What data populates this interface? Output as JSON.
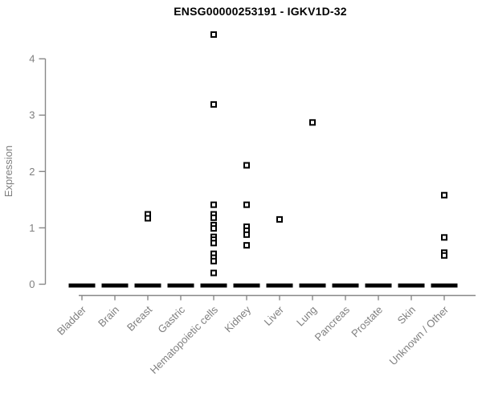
{
  "chart_data": {
    "type": "scatter",
    "title": "ENSG00000253191 - IGKV1D-32",
    "xlabel": "",
    "ylabel": "Expression",
    "ylim": [
      0,
      4.5
    ],
    "yticks": [
      0,
      1,
      2,
      3,
      4
    ],
    "grid": false,
    "legend": false,
    "marker": "open-square",
    "categories": [
      "Bladder",
      "Brain",
      "Breast",
      "Gastric",
      "Hematopoietic cells",
      "Kidney",
      "Liver",
      "Lung",
      "Pancreas",
      "Prostate",
      "Skin",
      "Unknown / Other"
    ],
    "series": [
      {
        "category": "Bladder",
        "zero_cluster": true,
        "values": []
      },
      {
        "category": "Brain",
        "zero_cluster": true,
        "values": []
      },
      {
        "category": "Breast",
        "zero_cluster": true,
        "values": [
          1.24,
          1.17
        ]
      },
      {
        "category": "Gastric",
        "zero_cluster": true,
        "values": []
      },
      {
        "category": "Hematopoietic cells",
        "zero_cluster": true,
        "values": [
          4.43,
          3.19,
          1.41,
          1.24,
          1.18,
          1.05,
          0.99,
          0.84,
          0.79,
          0.73,
          0.54,
          0.47,
          0.41,
          0.2
        ]
      },
      {
        "category": "Kidney",
        "zero_cluster": true,
        "values": [
          2.11,
          1.41,
          1.02,
          0.95,
          0.88,
          0.69
        ]
      },
      {
        "category": "Liver",
        "zero_cluster": true,
        "values": [
          1.15
        ]
      },
      {
        "category": "Lung",
        "zero_cluster": true,
        "values": [
          2.87
        ]
      },
      {
        "category": "Pancreas",
        "zero_cluster": true,
        "values": []
      },
      {
        "category": "Prostate",
        "zero_cluster": true,
        "values": []
      },
      {
        "category": "Skin",
        "zero_cluster": true,
        "values": []
      },
      {
        "category": "Unknown / Other",
        "zero_cluster": true,
        "values": [
          1.58,
          0.83,
          0.56,
          0.51
        ]
      }
    ],
    "colors": {
      "point": "#000000",
      "zero_dash": "#000000",
      "axis": "#888888",
      "tick_label": "#7f7f7f",
      "title": "#000000"
    }
  }
}
